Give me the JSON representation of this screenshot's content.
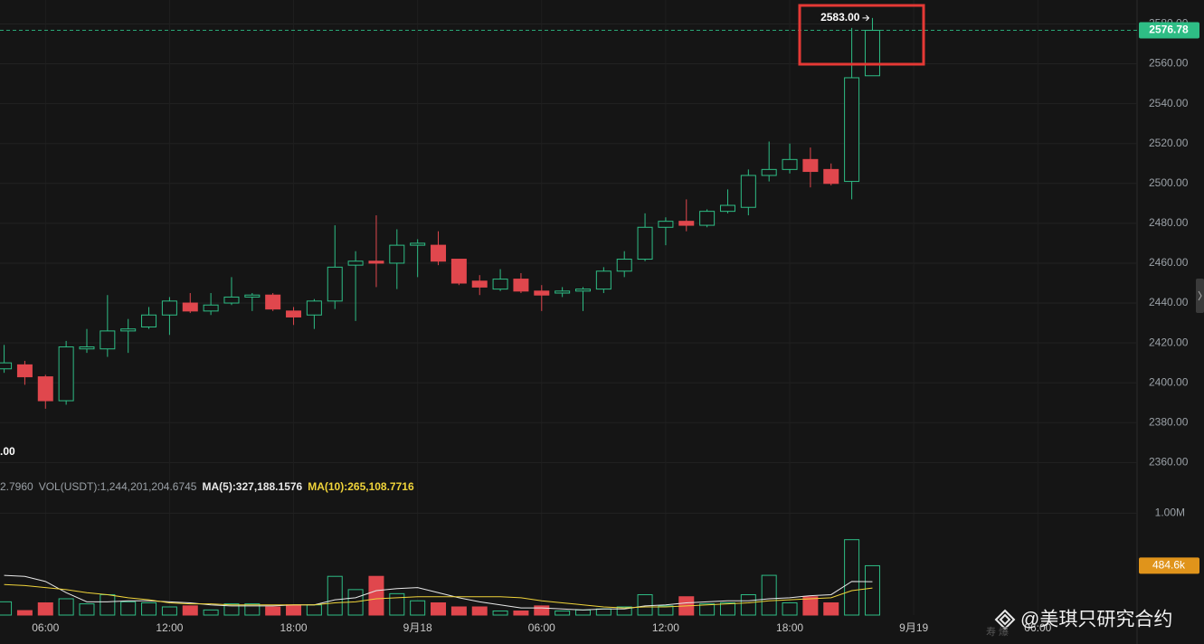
{
  "chart_data": {
    "type": "candlestick",
    "open": [
      2407,
      2409,
      2403,
      2391,
      2417,
      2417,
      2426,
      2428,
      2434,
      2440,
      2436,
      2440,
      2443,
      2444,
      2436,
      2434,
      2441,
      2459,
      2461,
      2460,
      2469,
      2469,
      2462,
      2451,
      2447,
      2452,
      2446,
      2445,
      2446,
      2447,
      2456,
      2462,
      2478,
      2481,
      2479,
      2486,
      2488,
      2504,
      2507,
      2512,
      2507,
      2501,
      2554
    ],
    "high": [
      2419,
      2411,
      2404,
      2421,
      2427,
      2444,
      2432,
      2438,
      2443,
      2445,
      2445,
      2453,
      2445,
      2445,
      2438,
      2442,
      2479,
      2466,
      2484,
      2477,
      2472,
      2476,
      2462,
      2454,
      2457,
      2455,
      2449,
      2448,
      2448,
      2458,
      2466,
      2485,
      2483,
      2492,
      2487,
      2497,
      2507,
      2521,
      2520,
      2518,
      2510,
      2578,
      2583
    ],
    "low": [
      2405,
      2399,
      2387,
      2389,
      2415,
      2413,
      2415,
      2427,
      2424,
      2435,
      2434,
      2439,
      2436,
      2436,
      2429,
      2427,
      2437,
      2431,
      2448,
      2447,
      2453,
      2459,
      2449,
      2444,
      2446,
      2445,
      2436,
      2443,
      2436,
      2445,
      2453,
      2461,
      2469,
      2476,
      2478,
      2485,
      2484,
      2501,
      2505,
      2498,
      2499,
      2492,
      2554
    ],
    "close": [
      2410,
      2403,
      2391,
      2418,
      2418,
      2426,
      2427,
      2434,
      2441,
      2436,
      2439,
      2443,
      2444,
      2437,
      2433,
      2441,
      2458,
      2461,
      2460,
      2469,
      2470,
      2461,
      2450,
      2448,
      2452,
      2446,
      2444,
      2446,
      2447,
      2456,
      2462,
      2478,
      2481,
      2479,
      2486,
      2489,
      2504,
      2507,
      2512,
      2506,
      2500,
      2553,
      2576.78
    ],
    "up_color": "#2ebd85",
    "down_color": "#e0474d",
    "xlim": [
      -0.2,
      54.8
    ],
    "xticks": [
      {
        "value": 2,
        "label": "06:00"
      },
      {
        "value": 8,
        "label": "12:00"
      },
      {
        "value": 14,
        "label": "18:00"
      },
      {
        "value": 20,
        "label": "9月18"
      },
      {
        "value": 26,
        "label": "06:00"
      },
      {
        "value": 32,
        "label": "12:00"
      },
      {
        "value": 38,
        "label": "18:00"
      },
      {
        "value": 44,
        "label": "9月19"
      },
      {
        "value": 50,
        "label": "06:00"
      }
    ],
    "ylim": [
      2352,
      2592
    ],
    "yticks": [
      {
        "value": 2360,
        "label": "2360.00"
      },
      {
        "value": 2380,
        "label": "2380.00"
      },
      {
        "value": 2400,
        "label": "2400.00"
      },
      {
        "value": 2420,
        "label": "2420.00"
      },
      {
        "value": 2440,
        "label": "2440.00"
      },
      {
        "value": 2460,
        "label": "2460.00"
      },
      {
        "value": 2480,
        "label": "2480.00"
      },
      {
        "value": 2500,
        "label": "2500.00"
      },
      {
        "value": 2520,
        "label": "2520.00"
      },
      {
        "value": 2540,
        "label": "2540.00"
      },
      {
        "value": 2560,
        "label": "2560.00"
      },
      {
        "value": 2580,
        "label": "2580.00"
      }
    ],
    "grid": true,
    "last_price": 2576.78,
    "high_marker": {
      "value": 2583,
      "label": "2583.00"
    },
    "cutoff_label": ".00",
    "volume": [
      130000,
      44000,
      120000,
      160000,
      110000,
      200000,
      130000,
      120000,
      80000,
      90000,
      50000,
      110000,
      110000,
      80000,
      100000,
      100000,
      380000,
      250000,
      380000,
      210000,
      140000,
      120000,
      80000,
      80000,
      40000,
      40000,
      90000,
      40000,
      50000,
      60000,
      80000,
      200000,
      90000,
      180000,
      110000,
      120000,
      200000,
      390000,
      120000,
      180000,
      120000,
      740000,
      484600
    ],
    "volume_ylim": [
      0,
      1110000
    ],
    "volume_yticks": [
      {
        "value": 1000000,
        "label": "1.00M"
      }
    ],
    "current_volume": {
      "value": 484600,
      "label": "484.6k"
    },
    "volume_series": [
      {
        "name": "MA(5):327,188.1576",
        "color": "#e8e8e8",
        "values": [
          390000,
          380000,
          330000,
          220000,
          130000,
          130000,
          140000,
          140000,
          130000,
          120000,
          100000,
          90000,
          90000,
          90000,
          100000,
          100000,
          150000,
          170000,
          240000,
          260000,
          270000,
          220000,
          170000,
          130000,
          100000,
          70000,
          70000,
          60000,
          50000,
          60000,
          60000,
          90000,
          100000,
          120000,
          130000,
          140000,
          140000,
          160000,
          170000,
          190000,
          200000,
          330000,
          327188.1576
        ]
      },
      {
        "name": "MA(10):265,108.7716",
        "color": "#f0d43a",
        "values": [
          300000,
          290000,
          270000,
          250000,
          220000,
          200000,
          170000,
          150000,
          120000,
          110000,
          110000,
          100000,
          100000,
          100000,
          100000,
          100000,
          120000,
          130000,
          160000,
          170000,
          180000,
          180000,
          180000,
          180000,
          180000,
          170000,
          140000,
          120000,
          100000,
          80000,
          70000,
          80000,
          80000,
          90000,
          100000,
          110000,
          120000,
          140000,
          150000,
          160000,
          170000,
          240000,
          265108.7716
        ]
      }
    ],
    "volume_legend_prefix": [
      "2.7960",
      "VOL(USDT):1,244,201,204.6745"
    ]
  },
  "watermark": "@美琪只研究合约",
  "watermark_faint": "寿 爆"
}
